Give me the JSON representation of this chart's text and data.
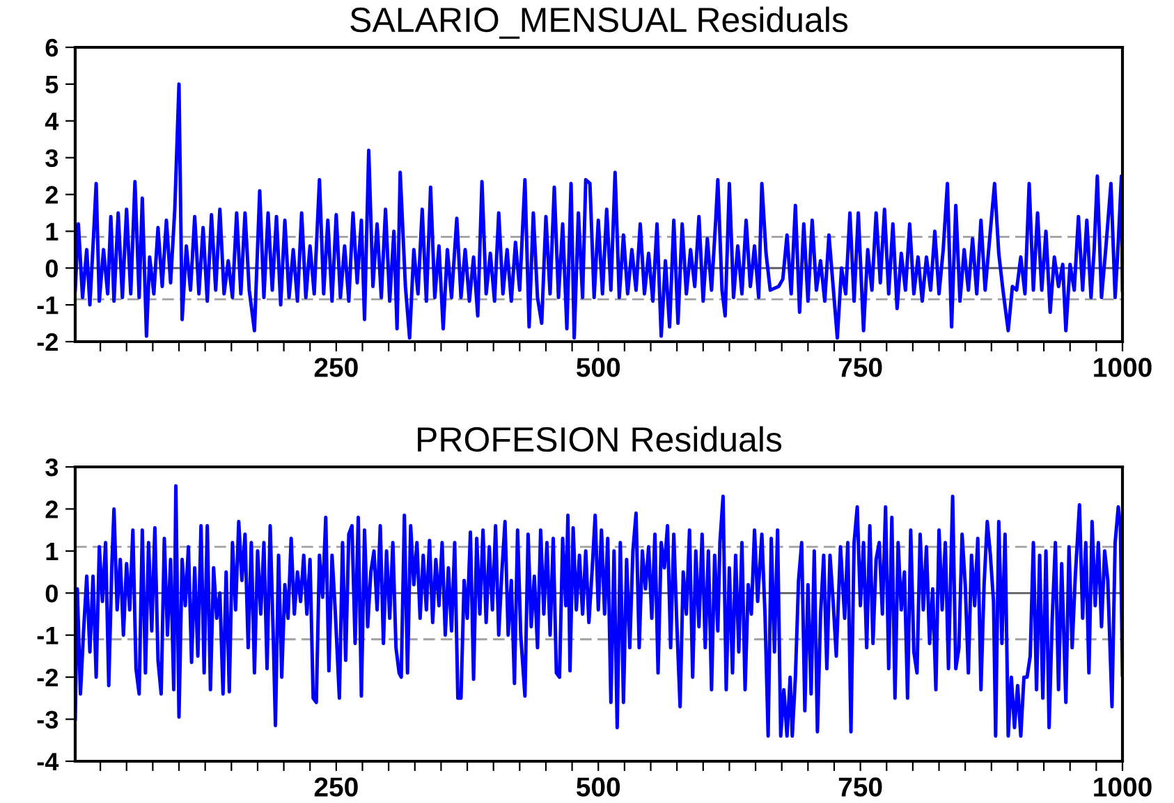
{
  "chart_data": [
    {
      "type": "line",
      "title": "SALARIO_MENSUAL Residuals",
      "xlim": [
        1,
        1000
      ],
      "ylim": [
        -2,
        6
      ],
      "yticks": [
        -2,
        -1,
        0,
        1,
        2,
        3,
        4,
        5,
        6
      ],
      "xticks": [
        {
          "value": 25,
          "label": null
        },
        {
          "value": 50,
          "label": null
        },
        {
          "value": 75,
          "label": null
        },
        {
          "value": 100,
          "label": null
        },
        {
          "value": 125,
          "label": null
        },
        {
          "value": 150,
          "label": null
        },
        {
          "value": 175,
          "label": null
        },
        {
          "value": 200,
          "label": null
        },
        {
          "value": 225,
          "label": null
        },
        250,
        {
          "value": 275,
          "label": null
        },
        {
          "value": 300,
          "label": null
        },
        {
          "value": 325,
          "label": null
        },
        {
          "value": 350,
          "label": null
        },
        {
          "value": 375,
          "label": null
        },
        {
          "value": 400,
          "label": null
        },
        {
          "value": 425,
          "label": null
        },
        {
          "value": 450,
          "label": null
        },
        {
          "value": 475,
          "label": null
        },
        500,
        {
          "value": 525,
          "label": null
        },
        {
          "value": 550,
          "label": null
        },
        {
          "value": 575,
          "label": null
        },
        {
          "value": 600,
          "label": null
        },
        {
          "value": 625,
          "label": null
        },
        {
          "value": 650,
          "label": null
        },
        {
          "value": 675,
          "label": null
        },
        {
          "value": 700,
          "label": null
        },
        {
          "value": 725,
          "label": null
        },
        750,
        {
          "value": 775,
          "label": null
        },
        {
          "value": 800,
          "label": null
        },
        {
          "value": 825,
          "label": null
        },
        {
          "value": 850,
          "label": null
        },
        {
          "value": 875,
          "label": null
        },
        {
          "value": 900,
          "label": null
        },
        {
          "value": 925,
          "label": null
        },
        {
          "value": 950,
          "label": null
        },
        {
          "value": 975,
          "label": null
        },
        1000
      ],
      "grid": false,
      "legend": false,
      "line_style": "solid",
      "marker": "none",
      "ref_lines": [
        {
          "axis": "y",
          "value": 0,
          "color": "#606060",
          "line_style": "solid"
        },
        {
          "axis": "y",
          "value": 0.85,
          "color": "#a0a0a0",
          "line_style": "dashed"
        },
        {
          "axis": "y",
          "value": -0.85,
          "color": "#a0a0a0",
          "line_style": "dashed"
        }
      ],
      "series": [
        {
          "color": "#0000ff",
          "x": [
            1,
            4,
            8,
            12,
            15,
            18,
            21,
            24,
            28,
            32,
            35,
            38,
            42,
            46,
            50,
            54,
            58,
            62,
            65,
            69,
            72,
            76,
            80,
            84,
            88,
            92,
            96,
            100,
            103,
            107,
            111,
            115,
            119,
            123,
            127,
            131,
            135,
            139,
            143,
            147,
            151,
            155,
            159,
            163,
            167,
            172,
            177,
            181,
            185,
            189,
            193,
            197,
            201,
            205,
            209,
            213,
            217,
            221,
            225,
            229,
            234,
            238,
            242,
            246,
            250,
            254,
            258,
            262,
            266,
            270,
            274,
            277,
            281,
            285,
            289,
            293,
            297,
            301,
            305,
            308,
            311,
            316,
            320,
            324,
            328,
            332,
            336,
            340,
            344,
            348,
            352,
            356,
            360,
            365,
            369,
            373,
            377,
            381,
            385,
            389,
            393,
            397,
            401,
            405,
            409,
            413,
            417,
            421,
            425,
            430,
            434,
            438,
            442,
            446,
            450,
            454,
            458,
            462,
            466,
            470,
            474,
            477,
            481,
            485,
            488,
            492,
            496,
            500,
            504,
            508,
            512,
            516,
            520,
            524,
            528,
            532,
            536,
            540,
            544,
            548,
            552,
            556,
            560,
            564,
            568,
            572,
            576,
            580,
            584,
            588,
            592,
            596,
            600,
            604,
            608,
            612,
            614,
            618,
            621,
            625,
            629,
            633,
            637,
            641,
            645,
            649,
            653,
            656,
            660,
            664,
            668,
            672,
            676,
            680,
            684,
            688,
            692,
            696,
            700,
            704,
            708,
            712,
            716,
            720,
            724,
            728,
            732,
            736,
            740,
            744,
            748,
            753,
            757,
            761,
            765,
            769,
            773,
            777,
            781,
            785,
            789,
            793,
            797,
            801,
            805,
            809,
            813,
            817,
            821,
            825,
            829,
            833,
            837,
            841,
            845,
            849,
            853,
            857,
            861,
            865,
            869,
            873,
            878,
            882,
            886,
            891,
            895,
            899,
            903,
            907,
            911,
            915,
            919,
            923,
            927,
            931,
            935,
            939,
            943,
            946,
            950,
            954,
            958,
            962,
            966,
            970,
            973,
            976,
            980,
            984,
            989,
            993,
            996,
            999,
            1000
          ],
          "values": [
            -0.6,
            1.2,
            -0.8,
            0.5,
            -1.0,
            0.6,
            2.3,
            -0.9,
            0.5,
            -0.7,
            1.4,
            -0.9,
            1.5,
            -0.8,
            1.6,
            -0.7,
            2.35,
            -0.8,
            1.9,
            -1.85,
            0.3,
            -0.7,
            1.1,
            -0.5,
            1.3,
            -0.4,
            1.6,
            5.0,
            -1.4,
            0.6,
            -0.6,
            1.4,
            -0.7,
            1.1,
            -0.9,
            1.45,
            -0.6,
            1.6,
            -0.7,
            0.2,
            -0.8,
            1.5,
            -0.7,
            1.5,
            -0.6,
            -1.7,
            2.1,
            -0.8,
            1.5,
            -0.6,
            1.4,
            -1.0,
            1.3,
            -0.8,
            0.5,
            -0.9,
            1.5,
            -0.8,
            0.6,
            -0.7,
            2.4,
            -0.7,
            1.3,
            -0.9,
            1.45,
            -0.8,
            0.6,
            -0.9,
            1.5,
            -0.4,
            1.3,
            -1.4,
            3.2,
            -0.5,
            1.2,
            -0.8,
            1.6,
            -0.9,
            1.0,
            -1.65,
            2.6,
            -0.5,
            -1.9,
            0.5,
            -0.7,
            1.6,
            -0.9,
            2.2,
            -0.8,
            0.6,
            -1.65,
            0.5,
            -0.8,
            1.35,
            -0.8,
            0.5,
            -0.9,
            0.3,
            -1.3,
            2.35,
            -0.7,
            0.4,
            -0.9,
            1.5,
            -0.7,
            0.5,
            -0.9,
            0.7,
            -0.6,
            2.4,
            -1.6,
            1.5,
            -0.8,
            -1.5,
            1.4,
            -0.7,
            2.2,
            -0.8,
            1.2,
            -1.65,
            2.3,
            -1.9,
            1.5,
            -0.8,
            2.4,
            2.3,
            -0.8,
            1.3,
            -0.7,
            1.6,
            -0.6,
            2.6,
            -0.8,
            0.9,
            -0.7,
            0.5,
            -0.6,
            1.2,
            -0.7,
            0.4,
            -0.9,
            1.2,
            -1.85,
            0.2,
            -1.6,
            1.3,
            -1.5,
            1.2,
            -0.7,
            0.5,
            -0.5,
            1.4,
            -0.9,
            0.8,
            -0.6,
            1.3,
            2.4,
            -0.6,
            -1.3,
            2.3,
            -0.8,
            0.6,
            -0.7,
            1.3,
            -0.5,
            0.6,
            -0.8,
            2.3,
            0.4,
            -0.6,
            -0.55,
            -0.5,
            -0.3,
            0.9,
            -0.7,
            1.7,
            -1.2,
            1.2,
            -0.9,
            1.3,
            -0.6,
            0.2,
            -0.9,
            0.9,
            -0.5,
            -1.9,
            0.0,
            -0.7,
            1.5,
            -0.9,
            1.5,
            -1.7,
            0.5,
            -0.6,
            1.5,
            -0.4,
            1.6,
            -0.7,
            1.2,
            -1.1,
            0.4,
            -0.6,
            1.2,
            -0.7,
            0.3,
            -0.9,
            0.3,
            -0.6,
            1.0,
            -0.7,
            0.5,
            2.3,
            -1.6,
            1.7,
            -0.9,
            0.5,
            -0.6,
            0.8,
            -0.7,
            1.3,
            -0.6,
            0.7,
            2.3,
            0.4,
            -0.6,
            -1.7,
            -0.5,
            -0.6,
            0.3,
            -0.7,
            2.3,
            -0.6,
            1.5,
            -0.6,
            1.0,
            -1.2,
            0.3,
            -0.5,
            0.1,
            -1.7,
            0.1,
            -0.6,
            1.4,
            -0.6,
            1.3,
            -0.8,
            0.5,
            2.5,
            -0.8,
            0.5,
            2.3,
            -0.8,
            0.7,
            2.5,
            -0.6
          ]
        }
      ]
    },
    {
      "type": "line",
      "title": "PROFESION Residuals",
      "xlim": [
        1,
        1000
      ],
      "ylim": [
        -4,
        3
      ],
      "yticks": [
        -4,
        -3,
        -2,
        -1,
        0,
        1,
        2,
        3
      ],
      "xticks": [
        {
          "value": 25,
          "label": null
        },
        {
          "value": 50,
          "label": null
        },
        {
          "value": 75,
          "label": null
        },
        {
          "value": 100,
          "label": null
        },
        {
          "value": 125,
          "label": null
        },
        {
          "value": 150,
          "label": null
        },
        {
          "value": 175,
          "label": null
        },
        {
          "value": 200,
          "label": null
        },
        {
          "value": 225,
          "label": null
        },
        250,
        {
          "value": 275,
          "label": null
        },
        {
          "value": 300,
          "label": null
        },
        {
          "value": 325,
          "label": null
        },
        {
          "value": 350,
          "label": null
        },
        {
          "value": 375,
          "label": null
        },
        {
          "value": 400,
          "label": null
        },
        {
          "value": 425,
          "label": null
        },
        {
          "value": 450,
          "label": null
        },
        {
          "value": 475,
          "label": null
        },
        500,
        {
          "value": 525,
          "label": null
        },
        {
          "value": 550,
          "label": null
        },
        {
          "value": 575,
          "label": null
        },
        {
          "value": 600,
          "label": null
        },
        {
          "value": 625,
          "label": null
        },
        {
          "value": 650,
          "label": null
        },
        {
          "value": 675,
          "label": null
        },
        {
          "value": 700,
          "label": null
        },
        {
          "value": 725,
          "label": null
        },
        750,
        {
          "value": 775,
          "label": null
        },
        {
          "value": 800,
          "label": null
        },
        {
          "value": 825,
          "label": null
        },
        {
          "value": 850,
          "label": null
        },
        {
          "value": 875,
          "label": null
        },
        {
          "value": 900,
          "label": null
        },
        {
          "value": 925,
          "label": null
        },
        {
          "value": 950,
          "label": null
        },
        {
          "value": 975,
          "label": null
        },
        1000
      ],
      "grid": false,
      "legend": false,
      "line_style": "solid",
      "marker": "none",
      "ref_lines": [
        {
          "axis": "y",
          "value": 0,
          "color": "#606060",
          "line_style": "solid"
        },
        {
          "axis": "y",
          "value": 1.1,
          "color": "#a0a0a0",
          "line_style": "dashed"
        },
        {
          "axis": "y",
          "value": -1.1,
          "color": "#a0a0a0",
          "line_style": "dashed"
        }
      ],
      "series": [
        {
          "color": "#0000ff",
          "x": [
            1,
            3,
            6,
            9,
            12,
            15,
            18,
            21,
            24,
            27,
            30,
            33,
            36,
            38,
            41,
            44,
            47,
            50,
            53,
            56,
            59,
            62,
            65,
            68,
            71,
            74,
            77,
            80,
            83,
            86,
            89,
            92,
            95,
            97,
            100,
            103,
            106,
            109,
            112,
            115,
            118,
            121,
            124,
            127,
            130,
            133,
            136,
            139,
            142,
            145,
            148,
            151,
            154,
            157,
            160,
            163,
            166,
            169,
            172,
            175,
            178,
            181,
            184,
            187,
            190,
            192,
            195,
            198,
            201,
            204,
            207,
            210,
            213,
            216,
            219,
            222,
            225,
            228,
            231,
            234,
            237,
            240,
            243,
            246,
            249,
            253,
            256,
            259,
            262,
            265,
            268,
            271,
            274,
            277,
            280,
            283,
            286,
            289,
            292,
            295,
            298,
            301,
            304,
            307,
            310,
            312,
            315,
            318,
            321,
            324,
            327,
            330,
            333,
            336,
            339,
            342,
            345,
            348,
            351,
            354,
            357,
            360,
            363,
            366,
            369,
            372,
            375,
            378,
            381,
            384,
            387,
            390,
            393,
            396,
            399,
            402,
            405,
            408,
            411,
            414,
            417,
            420,
            423,
            426,
            430,
            433,
            436,
            439,
            442,
            445,
            448,
            451,
            454,
            457,
            460,
            463,
            466,
            469,
            471,
            473,
            476,
            479,
            482,
            485,
            488,
            491,
            494,
            497,
            500,
            503,
            506,
            509,
            512,
            515,
            518,
            521,
            524,
            527,
            530,
            533,
            536,
            539,
            542,
            545,
            548,
            551,
            554,
            557,
            560,
            563,
            566,
            569,
            572,
            575,
            578,
            581,
            584,
            587,
            590,
            593,
            596,
            599,
            602,
            605,
            608,
            611,
            614,
            616,
            619,
            622,
            625,
            628,
            631,
            634,
            637,
            640,
            643,
            646,
            649,
            652,
            656,
            659,
            662,
            665,
            668,
            671,
            674,
            677,
            680,
            683,
            685,
            688,
            691,
            694,
            697,
            700,
            703,
            706,
            709,
            712,
            715,
            718,
            721,
            724,
            727,
            731,
            735,
            738,
            741,
            744,
            747,
            750,
            753,
            756,
            759,
            762,
            765,
            768,
            771,
            774,
            777,
            780,
            783,
            786,
            789,
            792,
            795,
            798,
            801,
            804,
            807,
            810,
            813,
            816,
            819,
            822,
            825,
            828,
            831,
            834,
            838,
            841,
            844,
            847,
            850,
            853,
            856,
            859,
            862,
            865,
            868,
            871,
            874,
            877,
            879,
            882,
            885,
            888,
            891,
            894,
            897,
            900,
            903,
            906,
            909,
            912,
            915,
            918,
            921,
            924,
            927,
            930,
            933,
            936,
            939,
            942,
            946,
            949,
            952,
            955,
            959,
            962,
            965,
            968,
            971,
            974,
            977,
            980,
            983,
            986,
            990,
            993,
            996,
            998,
            1000
          ],
          "values": [
            -3.0,
            0.1,
            -2.4,
            -0.9,
            0.4,
            -1.4,
            0.4,
            -2.0,
            1.1,
            -0.2,
            1.2,
            -2.2,
            0.7,
            2.0,
            -0.4,
            0.8,
            -1.0,
            0.7,
            -0.4,
            1.5,
            -1.8,
            -2.4,
            1.5,
            -1.9,
            1.2,
            -0.9,
            1.55,
            -1.6,
            -2.4,
            1.3,
            -1.0,
            0.8,
            -2.3,
            2.55,
            -2.95,
            0.8,
            -0.3,
            1.1,
            -1.65,
            0.6,
            -1.5,
            1.6,
            -1.9,
            1.6,
            -2.3,
            0.6,
            -0.6,
            0.0,
            -2.4,
            0.5,
            -2.35,
            1.2,
            -0.4,
            1.7,
            0.3,
            1.4,
            -1.3,
            1.2,
            -1.9,
            1.0,
            -0.5,
            1.2,
            -1.8,
            1.6,
            -1.1,
            -3.15,
            0.9,
            -2.0,
            0.2,
            -0.6,
            1.3,
            -0.5,
            0.5,
            -0.2,
            0.9,
            -0.5,
            0.8,
            -2.5,
            -2.6,
            0.9,
            -0.1,
            1.8,
            -1.85,
            0.9,
            -0.4,
            -2.5,
            1.2,
            -1.6,
            1.4,
            1.6,
            -1.2,
            1.8,
            -2.45,
            1.5,
            -0.8,
            0.5,
            1.0,
            -0.4,
            1.6,
            -1.2,
            1.0,
            -0.6,
            1.2,
            -1.3,
            -1.9,
            -2.0,
            1.85,
            -1.9,
            1.6,
            0.2,
            1.2,
            -0.6,
            0.9,
            -0.4,
            1.25,
            -0.7,
            0.8,
            -0.3,
            1.2,
            -1.0,
            0.6,
            -0.9,
            1.2,
            -2.5,
            -2.5,
            0.3,
            -0.6,
            1.45,
            -2.05,
            1.3,
            -0.5,
            1.5,
            -0.7,
            1.1,
            -0.4,
            1.6,
            -1.0,
            0.5,
            1.7,
            -1.0,
            0.3,
            -2.15,
            1.5,
            -1.0,
            -2.45,
            1.4,
            -0.8,
            0.4,
            -1.3,
            1.5,
            -0.5,
            1.2,
            -1.0,
            1.3,
            -1.9,
            -2.0,
            1.3,
            -0.3,
            1.85,
            -1.85,
            1.55,
            -0.4,
            0.9,
            -0.5,
            1.0,
            -0.7,
            0.5,
            1.85,
            -0.4,
            1.5,
            -0.5,
            1.3,
            -2.6,
            1.0,
            -3.2,
            1.2,
            -2.6,
            0.8,
            -1.3,
            1.0,
            1.9,
            -1.3,
            1.0,
            0.1,
            1.1,
            -0.6,
            1.4,
            -1.9,
            1.2,
            0.6,
            1.6,
            -1.3,
            1.4,
            -0.8,
            -2.7,
            0.5,
            -0.5,
            1.5,
            -2.0,
            1.0,
            -0.8,
            1.4,
            -1.3,
            1.0,
            -2.3,
            0.9,
            -0.9,
            1.2,
            2.3,
            -2.3,
            0.6,
            -1.9,
            0.9,
            -1.4,
            1.2,
            -2.3,
            0.2,
            -0.5,
            1.5,
            -0.2,
            1.4,
            -0.5,
            -3.4,
            1.3,
            -1.4,
            1.5,
            -3.4,
            -2.3,
            -3.4,
            -2.0,
            -3.4,
            -2.0,
            0.3,
            1.2,
            -2.8,
            0.2,
            -2.4,
            1.0,
            -3.3,
            -0.5,
            0.9,
            -1.8,
            0.9,
            -0.2,
            -1.5,
            1.1,
            -0.6,
            1.2,
            -3.3,
            1.2,
            2.05,
            -0.3,
            1.2,
            -1.3,
            1.6,
            -1.2,
            0.8,
            1.2,
            -0.5,
            2.05,
            -1.8,
            1.8,
            -2.5,
            1.2,
            -0.4,
            0.5,
            -2.5,
            1.5,
            -1.4,
            -1.9,
            1.4,
            -0.4,
            1.1,
            -1.2,
            0.1,
            -2.3,
            1.5,
            -0.4,
            1.2,
            -1.8,
            2.3,
            -1.8,
            -1.3,
            1.4,
            0.2,
            -1.9,
            0.9,
            -0.3,
            1.3,
            -2.3,
            0.2,
            1.7,
            0.9,
            -0.2,
            -3.4,
            1.7,
            -1.2,
            1.4,
            -3.4,
            -2.0,
            -3.2,
            -2.2,
            -3.4,
            -2.0,
            -2.0,
            -1.5,
            1.2,
            -2.3,
            0.9,
            -2.5,
            1.0,
            -3.2,
            -0.6,
            1.2,
            -2.3,
            0.7,
            -2.6,
            1.1,
            -1.3,
            0.4,
            2.1,
            -0.6,
            1.2,
            -1.9,
            1.7,
            -0.3,
            1.2,
            -0.8,
            1.0,
            0.3,
            -2.7,
            1.2,
            2.05,
            1.6,
            -1.95
          ]
        }
      ]
    }
  ]
}
